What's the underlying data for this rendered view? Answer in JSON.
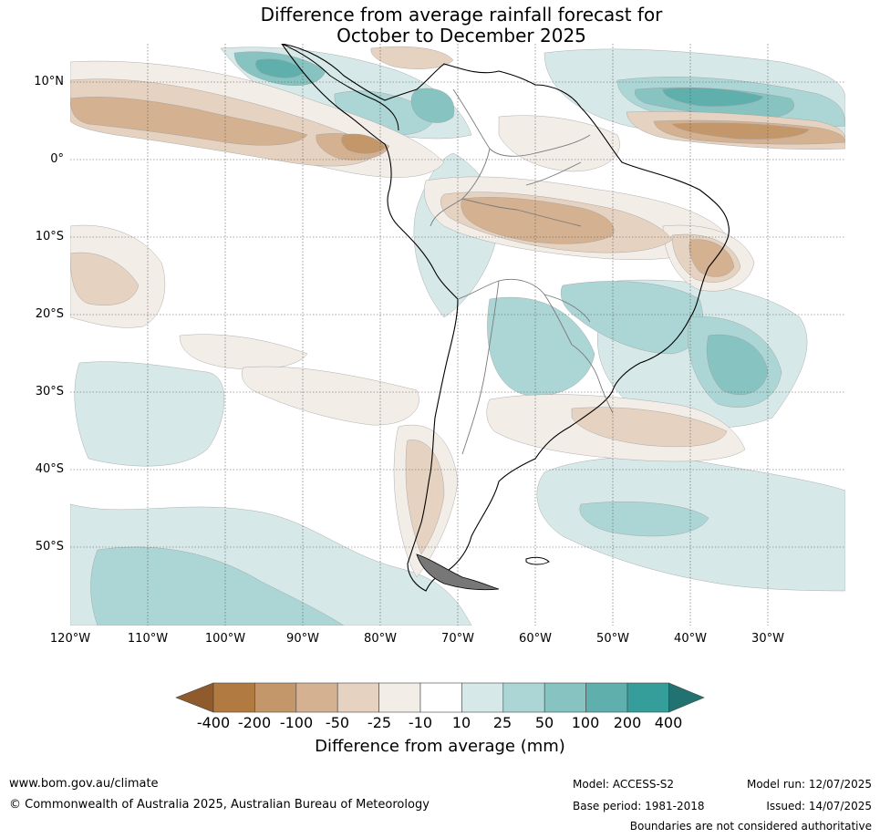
{
  "title": {
    "line1": "Difference from average rainfall forecast for",
    "line2": "October to December 2025"
  },
  "map": {
    "lat_labels": [
      "10°N",
      "0°",
      "10°S",
      "20°S",
      "30°S",
      "40°S",
      "50°S"
    ],
    "lon_labels": [
      "120°W",
      "110°W",
      "100°W",
      "90°W",
      "80°W",
      "70°W",
      "60°W",
      "50°W",
      "40°W",
      "30°W"
    ]
  },
  "colorbar": {
    "ticks": [
      "-400",
      "-200",
      "-100",
      "-50",
      "-25",
      "-10",
      "10",
      "25",
      "50",
      "100",
      "200",
      "400"
    ],
    "colors": {
      "under": "#8f5a2c",
      "over": "#237272",
      "bins": [
        "#b07a40",
        "#c4976a",
        "#d4b191",
        "#e6d2c0",
        "#f3ede7",
        "#ffffff",
        "#d6e9e8",
        "#acd6d5",
        "#86c3c1",
        "#5fb0ad",
        "#359e9a"
      ]
    },
    "label": "Difference from average (mm)"
  },
  "footer": {
    "url": "www.bom.gov.au/climate",
    "copyright": "© Commonwealth of Australia 2025, Australian Bureau of Meteorology",
    "model": "Model: ACCESS-S2",
    "base_period": "Base period: 1981-2018",
    "model_run": "Model run: 12/07/2025",
    "issued": "Issued: 14/07/2025",
    "disclaimer": "Boundaries are not considered authoritative"
  }
}
